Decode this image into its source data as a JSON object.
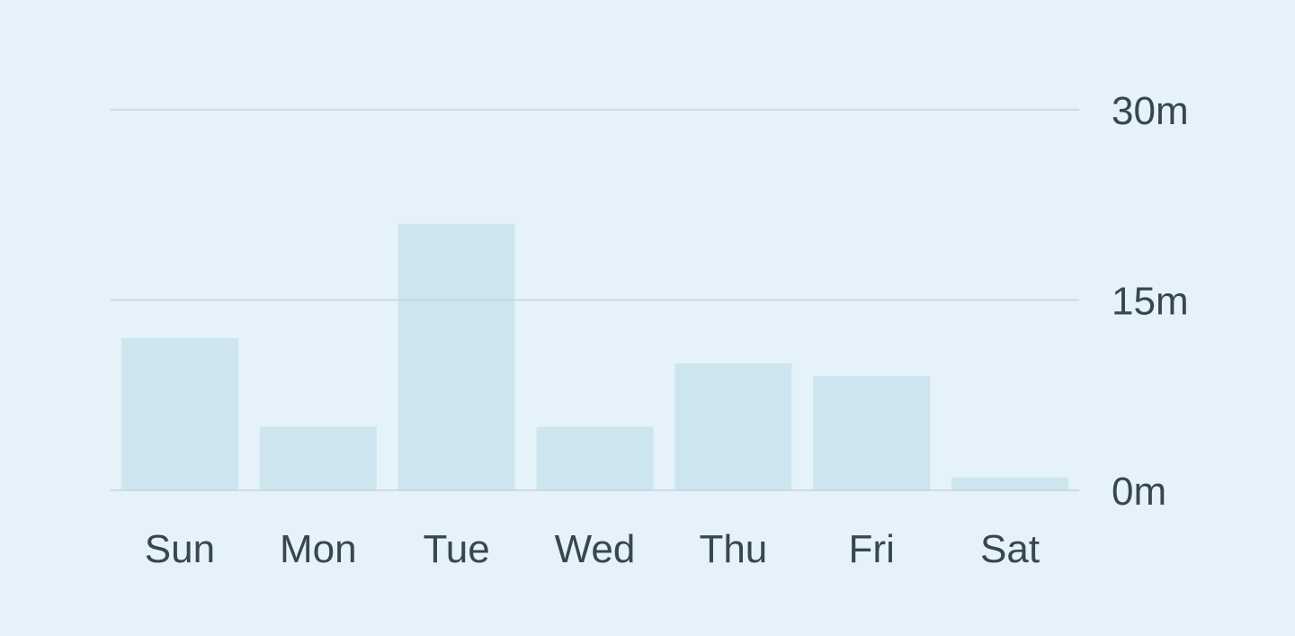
{
  "chart_data": {
    "type": "bar",
    "categories": [
      "Sun",
      "Mon",
      "Tue",
      "Wed",
      "Thu",
      "Fri",
      "Sat"
    ],
    "values": [
      12,
      5,
      21,
      5,
      10,
      9,
      1
    ],
    "title": "",
    "xlabel": "",
    "ylabel": "",
    "ylim": [
      0,
      30
    ],
    "yticks": [
      0,
      15,
      30
    ],
    "ytick_labels": [
      "0m",
      "15m",
      "30m"
    ],
    "grid": true,
    "y_axis_position": "right",
    "colors": {
      "background": "#e5f2f9",
      "bar": "#cde5ef",
      "grid": "#c5d5dc",
      "text": "#37474f"
    }
  }
}
